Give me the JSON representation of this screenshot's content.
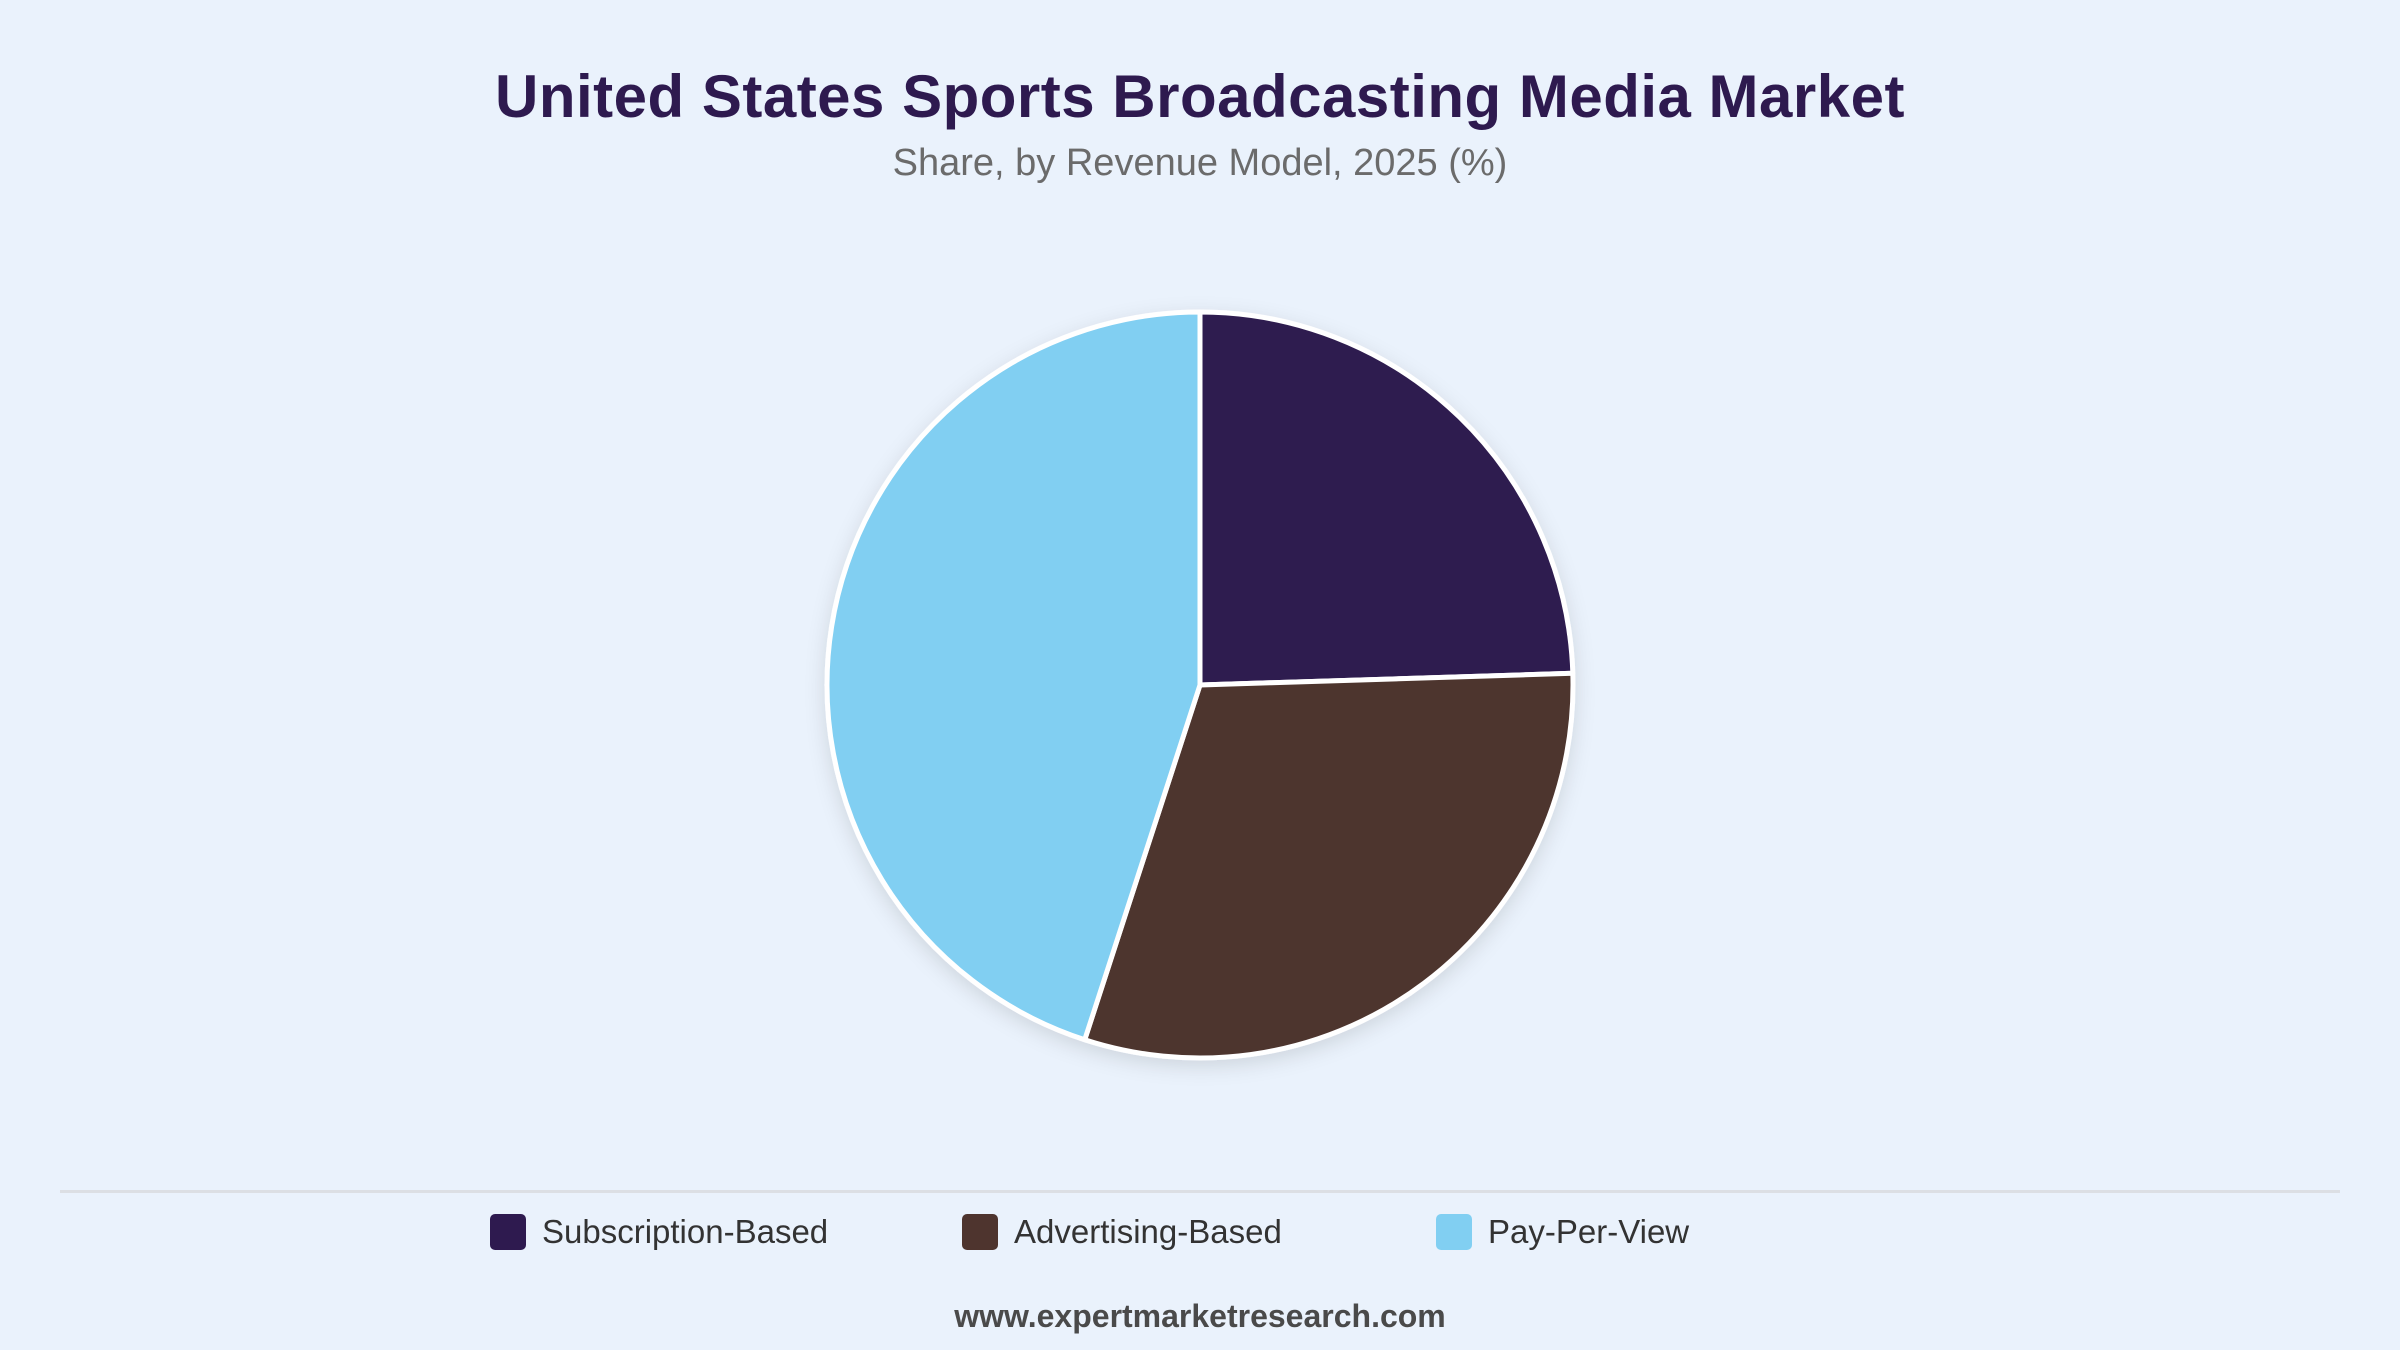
{
  "chart_data": {
    "type": "pie",
    "title": "United States Sports Broadcasting Media Market",
    "subtitle": "Share, by Revenue Model, 2025 (%)",
    "slices": [
      {
        "label": "Subscription-Based",
        "value": 24.5,
        "color": "#2e1a4f"
      },
      {
        "label": "Advertising-Based",
        "value": 30.5,
        "color": "#4e342e"
      },
      {
        "label": "Pay-Per-View",
        "value": 45.0,
        "color": "#81cff2"
      }
    ],
    "legend_position": "bottom"
  },
  "footer": {
    "source": "www.expertmarketresearch.com"
  }
}
